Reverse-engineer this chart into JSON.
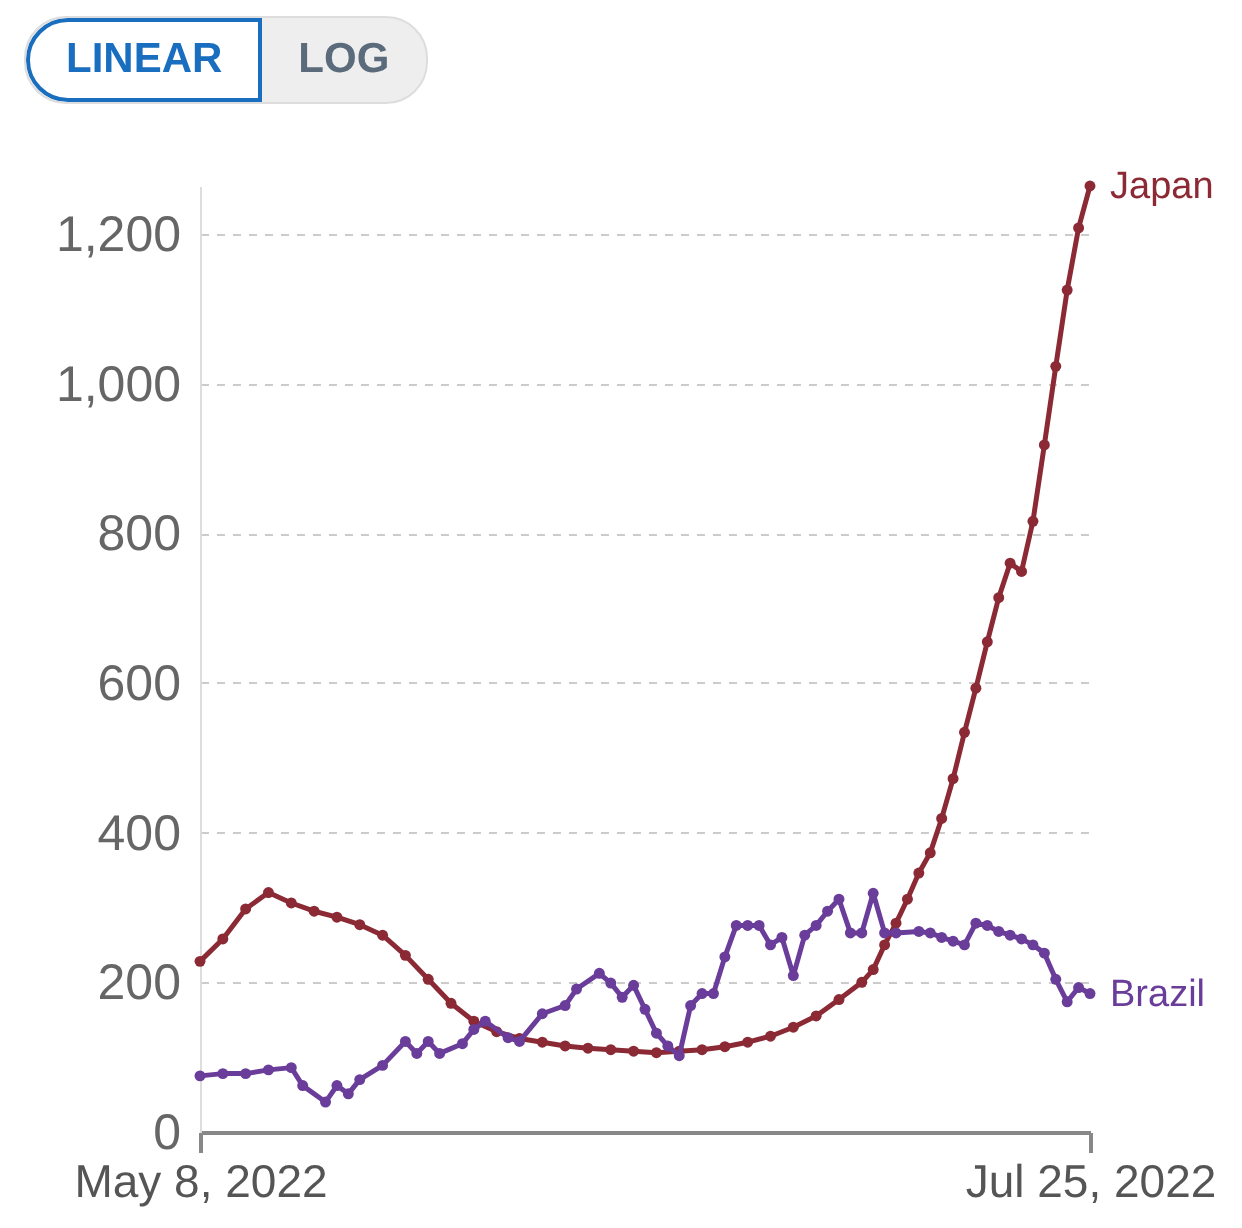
{
  "chart_data": {
    "type": "line",
    "annotations": [
      "LINEAR",
      "LOG"
    ],
    "xlim": [
      "2022-05-08",
      "2022-07-25"
    ],
    "xticks": [
      {
        "value": "2022-05-08",
        "label": "May 8, 2022"
      },
      {
        "value": "2022-07-25",
        "label": "Jul 25, 2022"
      }
    ],
    "ylim": [
      0,
      1264
    ],
    "yticks": [
      0,
      200,
      400,
      600,
      800,
      {
        "value": 1000,
        "label": "1,000"
      },
      {
        "value": 1200,
        "label": "1,200"
      }
    ],
    "grid": "y",
    "marker": "circle",
    "line_style": "solid",
    "legend": "right",
    "series": [
      {
        "name": "Japan",
        "color": "#8b2a35",
        "x": [
          "2022-05-08",
          "2022-05-10",
          "2022-05-12",
          "2022-05-14",
          "2022-05-16",
          "2022-05-18",
          "2022-05-20",
          "2022-05-22",
          "2022-05-24",
          "2022-05-26",
          "2022-05-28",
          "2022-05-30",
          "2022-06-01",
          "2022-06-03",
          "2022-06-05",
          "2022-06-07",
          "2022-06-09",
          "2022-06-11",
          "2022-06-13",
          "2022-06-15",
          "2022-06-17",
          "2022-06-19",
          "2022-06-21",
          "2022-06-23",
          "2022-06-25",
          "2022-06-27",
          "2022-06-29",
          "2022-07-01",
          "2022-07-03",
          "2022-07-05",
          "2022-07-06",
          "2022-07-07",
          "2022-07-08",
          "2022-07-09",
          "2022-07-10",
          "2022-07-11",
          "2022-07-12",
          "2022-07-13",
          "2022-07-14",
          "2022-07-15",
          "2022-07-16",
          "2022-07-17",
          "2022-07-18",
          "2022-07-19",
          "2022-07-20",
          "2022-07-21",
          "2022-07-22",
          "2022-07-23",
          "2022-07-24",
          "2022-07-25"
        ],
        "values": [
          228,
          258,
          298,
          320,
          306,
          295,
          287,
          277,
          263,
          236,
          204,
          172,
          148,
          134,
          125,
          120,
          115,
          112,
          110,
          108,
          106,
          108,
          110,
          114,
          120,
          128,
          140,
          155,
          177,
          200,
          217,
          250,
          279,
          311,
          346,
          373,
          419,
          472,
          534,
          593,
          655,
          714,
          760,
          749,
          816,
          918,
          1023,
          1125,
          1208,
          1264
        ]
      },
      {
        "name": "Brazil",
        "color": "#6a3d9a",
        "x": [
          "2022-05-08",
          "2022-05-10",
          "2022-05-12",
          "2022-05-14",
          "2022-05-16",
          "2022-05-17",
          "2022-05-19",
          "2022-05-20",
          "2022-05-21",
          "2022-05-22",
          "2022-05-24",
          "2022-05-26",
          "2022-05-27",
          "2022-05-28",
          "2022-05-29",
          "2022-05-31",
          "2022-06-01",
          "2022-06-02",
          "2022-06-04",
          "2022-06-05",
          "2022-06-07",
          "2022-06-09",
          "2022-06-10",
          "2022-06-12",
          "2022-06-13",
          "2022-06-14",
          "2022-06-15",
          "2022-06-16",
          "2022-06-17",
          "2022-06-18",
          "2022-06-19",
          "2022-06-20",
          "2022-06-21",
          "2022-06-22",
          "2022-06-23",
          "2022-06-24",
          "2022-06-25",
          "2022-06-26",
          "2022-06-27",
          "2022-06-28",
          "2022-06-29",
          "2022-06-30",
          "2022-07-01",
          "2022-07-02",
          "2022-07-03",
          "2022-07-04",
          "2022-07-05",
          "2022-07-06",
          "2022-07-07",
          "2022-07-08",
          "2022-07-10",
          "2022-07-11",
          "2022-07-12",
          "2022-07-13",
          "2022-07-14",
          "2022-07-15",
          "2022-07-16",
          "2022-07-17",
          "2022-07-18",
          "2022-07-19",
          "2022-07-20",
          "2022-07-21",
          "2022-07-22",
          "2022-07-23",
          "2022-07-24",
          "2022-07-25"
        ],
        "values": [
          75,
          78,
          78,
          83,
          86,
          62,
          40,
          62,
          51,
          70,
          89,
          121,
          105,
          121,
          105,
          118,
          137,
          148,
          126,
          121,
          158,
          169,
          191,
          212,
          199,
          180,
          196,
          164,
          132,
          115,
          102,
          169,
          185,
          185,
          234,
          276,
          276,
          276,
          250,
          260,
          209,
          263,
          276,
          295,
          311,
          266,
          266,
          319,
          266,
          266,
          268,
          266,
          260,
          255,
          250,
          279,
          276,
          268,
          263,
          258,
          250,
          239,
          204,
          174,
          193,
          185
        ]
      }
    ]
  }
}
